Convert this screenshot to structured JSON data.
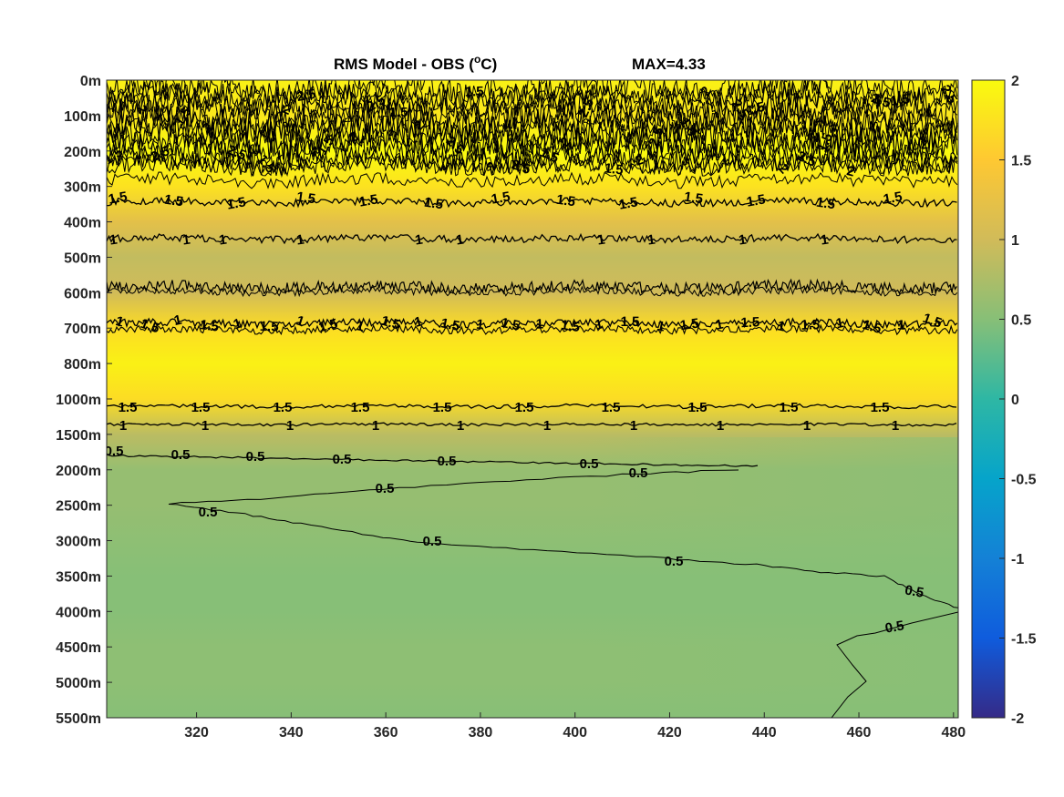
{
  "chart_data": {
    "type": "heatmap",
    "title": "RMS Model - OBS (",
    "title_unit_sup": "o",
    "title_unit_end": "C)",
    "max_label": "MAX=4.33",
    "x_ticks": [
      320,
      340,
      360,
      380,
      400,
      420,
      440,
      460,
      480
    ],
    "xlim": [
      301,
      481
    ],
    "y_tick_labels": [
      "0m",
      "100m",
      "200m",
      "300m",
      "400m",
      "500m",
      "600m",
      "700m",
      "800m",
      "1000m",
      "1500m",
      "2000m",
      "2500m",
      "3000m",
      "3500m",
      "4000m",
      "4500m",
      "5000m",
      "5500m"
    ],
    "colorbar": {
      "clim": [
        -2,
        2
      ],
      "ticks": [
        "2",
        "1.5",
        "1",
        "0.5",
        "0",
        "-0.5",
        "-1",
        "-1.5",
        "-2"
      ],
      "colormap": "parula",
      "stops": [
        "#352a87",
        "#0f5cdd",
        "#1481d6",
        "#06a4ca",
        "#2eb7a4",
        "#87bf77",
        "#d1bb59",
        "#fec832",
        "#f9fb0e"
      ]
    },
    "field_by_depth": [
      {
        "depth": "0m",
        "value": 1.9
      },
      {
        "depth": "100m",
        "value": 1.8
      },
      {
        "depth": "200m",
        "value": 2.0
      },
      {
        "depth": "300m",
        "value": 1.75
      },
      {
        "depth": "400m",
        "value": 1.2
      },
      {
        "depth": "500m",
        "value": 0.9
      },
      {
        "depth": "600m",
        "value": 1.0
      },
      {
        "depth": "700m",
        "value": 1.7
      },
      {
        "depth": "800m",
        "value": 1.9
      },
      {
        "depth": "1000m",
        "value": 1.7
      },
      {
        "depth": "1500m",
        "value": 0.85
      },
      {
        "depth": "2000m",
        "value": 0.6
      },
      {
        "depth": "2500m",
        "value": 0.6
      },
      {
        "depth": "3000m",
        "value": 0.55
      },
      {
        "depth": "3500m",
        "value": 0.5
      },
      {
        "depth": "4000m",
        "value": 0.5
      },
      {
        "depth": "4500m",
        "value": 0.55
      },
      {
        "depth": "5000m",
        "value": 0.55
      },
      {
        "depth": "5500m",
        "value": 0.5
      }
    ],
    "contour_labels": {
      "upper": [
        "1.5",
        "2",
        "2.5"
      ],
      "mid_1_5": "1.5",
      "mid_1": "1",
      "deep": "0.5"
    },
    "grid": false
  }
}
